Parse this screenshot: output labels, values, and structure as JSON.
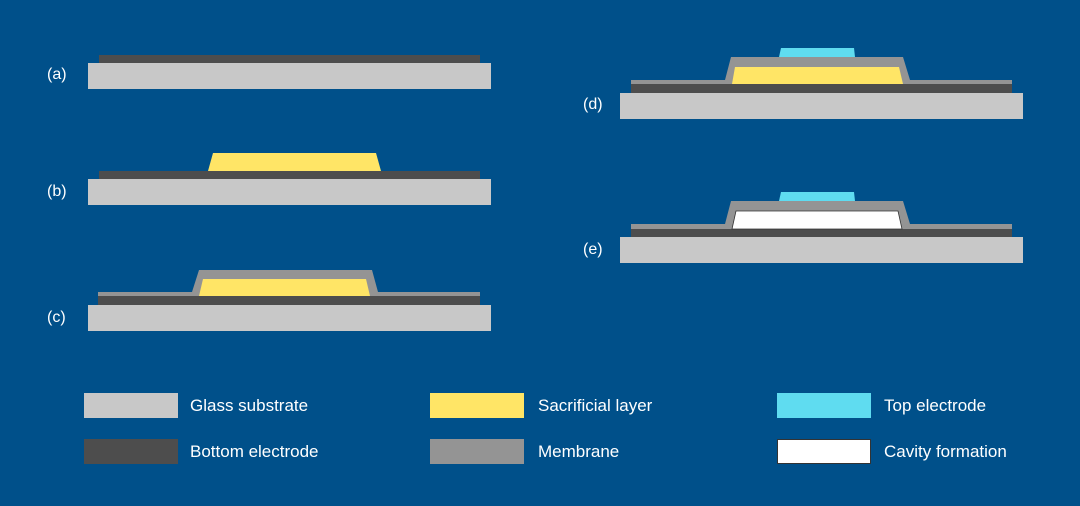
{
  "colors": {
    "background": "#00508a",
    "glass_substrate": "#c8c8c8",
    "bottom_electrode": "#4d4d4d",
    "sacrificial_layer": "#ffe566",
    "membrane": "#949494",
    "top_electrode": "#5fdcf0",
    "cavity": "#ffffff"
  },
  "steps": [
    {
      "label": "(a)"
    },
    {
      "label": "(b)"
    },
    {
      "label": "(c)"
    },
    {
      "label": "(d)"
    },
    {
      "label": "(e)"
    }
  ],
  "legend": [
    {
      "label": "Glass substrate",
      "color": "#c8c8c8"
    },
    {
      "label": "Bottom electrode",
      "color": "#4d4d4d"
    },
    {
      "label": "Sacrificial layer",
      "color": "#ffe566"
    },
    {
      "label": "Membrane",
      "color": "#949494"
    },
    {
      "label": "Top electrode",
      "color": "#5fdcf0"
    },
    {
      "label": "Cavity formation",
      "color": "#ffffff"
    }
  ]
}
